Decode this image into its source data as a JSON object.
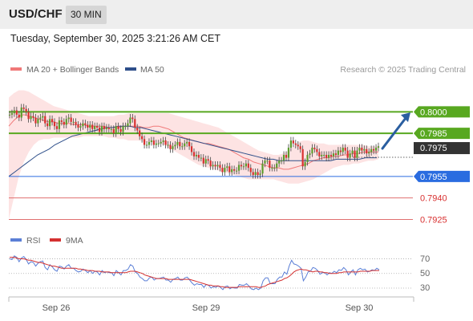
{
  "header": {
    "symbol": "USD/CHF",
    "interval": "30 MIN",
    "datetime": "Tuesday, September 30, 2025 3:21:26 AM CET"
  },
  "colors": {
    "bollinger": "#f07878",
    "bollinger_fill": "#fde3e3",
    "ma50": "#2e4f8a",
    "target_green": "#58a820",
    "current_dark": "#333333",
    "pivot_blue": "#2a6ce0",
    "support_red": "#e07070",
    "arrow": "#2a5ea0",
    "rsi": "#5b7fd6",
    "rsi_ma": "#d43030",
    "candle_up": "#5c9c2c",
    "candle_down": "#d83030"
  },
  "chart_data": [
    {
      "type": "candlestick",
      "legend": [
        {
          "label": "MA 20 + Bollinger Bands",
          "color": "#f07878"
        },
        {
          "label": "MA 50",
          "color": "#2e4f8a"
        }
      ],
      "credit": "Research © 2025 Trading Central",
      "ylim": [
        0.7918,
        0.8022
      ],
      "close": [
        0.7998,
        0.7999,
        0.8001,
        0.7998,
        0.7996,
        0.8003,
        0.8002,
        0.8,
        0.7995,
        0.7997,
        0.7996,
        0.7992,
        0.7995,
        0.7996,
        0.7997,
        0.7992,
        0.799,
        0.7995,
        0.7993,
        0.799,
        0.7988,
        0.7994,
        0.7993,
        0.7991,
        0.7995,
        0.7996,
        0.7993,
        0.7993,
        0.7991,
        0.7989,
        0.799,
        0.7992,
        0.7991,
        0.7989,
        0.7991,
        0.7988,
        0.799,
        0.7989,
        0.7986,
        0.799,
        0.7988,
        0.7989,
        0.7988,
        0.7988,
        0.7985,
        0.799,
        0.7988,
        0.7986,
        0.799,
        0.799,
        0.7992,
        0.7996,
        0.7995,
        0.7989,
        0.7987,
        0.7983,
        0.7981,
        0.7977,
        0.7977,
        0.7979,
        0.798,
        0.7977,
        0.7978,
        0.7978,
        0.7979,
        0.798,
        0.7977,
        0.7977,
        0.7974,
        0.7976,
        0.7977,
        0.7979,
        0.7976,
        0.7976,
        0.7978,
        0.7979,
        0.7976,
        0.7972,
        0.7969,
        0.797,
        0.7968,
        0.7968,
        0.7964,
        0.7967,
        0.7966,
        0.7962,
        0.7963,
        0.7962,
        0.7963,
        0.7961,
        0.7958,
        0.7961,
        0.7962,
        0.7958,
        0.796,
        0.7959,
        0.7959,
        0.7963,
        0.7962,
        0.7962,
        0.7964,
        0.7961,
        0.7958,
        0.7956,
        0.7958,
        0.7956,
        0.7957,
        0.7964,
        0.7966,
        0.7966,
        0.7961,
        0.7961,
        0.7961,
        0.7964,
        0.7966,
        0.7966,
        0.797,
        0.7968,
        0.7975,
        0.798,
        0.7978,
        0.7977,
        0.7976,
        0.7974,
        0.7962,
        0.7965,
        0.797,
        0.7971,
        0.7975,
        0.7974,
        0.7972,
        0.7969,
        0.797,
        0.797,
        0.7968,
        0.797,
        0.7969,
        0.7971,
        0.797,
        0.7973,
        0.7972,
        0.7975,
        0.7973,
        0.7968,
        0.7971,
        0.7973,
        0.7968,
        0.7973,
        0.7975,
        0.7973,
        0.7974,
        0.7971,
        0.7972,
        0.7974,
        0.7973,
        0.7975,
        0.7976
      ],
      "bb_mid": [
        0.799,
        0.7994,
        0.7997,
        0.7998,
        0.7997,
        0.7996,
        0.7995,
        0.7994,
        0.7993,
        0.7993,
        0.7992,
        0.7992,
        0.7992,
        0.7991,
        0.7991,
        0.7991,
        0.799,
        0.799,
        0.799,
        0.799,
        0.7989,
        0.7989,
        0.7989,
        0.799,
        0.799,
        0.799,
        0.799,
        0.7989,
        0.7989,
        0.799,
        0.799,
        0.7989,
        0.7988,
        0.7986,
        0.7984,
        0.7982,
        0.7981,
        0.798,
        0.7979,
        0.7978,
        0.7978,
        0.7977,
        0.7976,
        0.7975,
        0.7974,
        0.7972,
        0.797,
        0.7968,
        0.7967,
        0.7965,
        0.7964,
        0.7963,
        0.7962,
        0.7961,
        0.7961,
        0.796,
        0.796,
        0.7961,
        0.7962,
        0.7963,
        0.7964,
        0.7966,
        0.7967,
        0.7968,
        0.7968,
        0.7969,
        0.7969,
        0.797,
        0.797,
        0.7971,
        0.7971,
        0.7972,
        0.7972,
        0.7972,
        0.7972
      ],
      "bb_upper": [
        0.801,
        0.8013,
        0.8015,
        0.8015,
        0.8014,
        0.8012,
        0.801,
        0.8008,
        0.8006,
        0.8004,
        0.8003,
        0.8002,
        0.8001,
        0.8,
        0.7999,
        0.7998,
        0.7997,
        0.7997,
        0.7997,
        0.7997,
        0.7997,
        0.7997,
        0.7998,
        0.7998,
        0.7999,
        0.7999,
        0.7999,
        0.7999,
        0.7999,
        0.7999,
        0.7999,
        0.7999,
        0.7999,
        0.7998,
        0.7997,
        0.7996,
        0.7995,
        0.7994,
        0.7993,
        0.7992,
        0.7991,
        0.799,
        0.7989,
        0.7987,
        0.7985,
        0.7983,
        0.7981,
        0.7979,
        0.7977,
        0.7975,
        0.7973,
        0.7972,
        0.7971,
        0.797,
        0.797,
        0.7971,
        0.7973,
        0.7976,
        0.7979,
        0.798,
        0.798,
        0.7979,
        0.7978,
        0.7978,
        0.7977,
        0.7977,
        0.7977,
        0.7977,
        0.7977,
        0.7977,
        0.7977,
        0.7977,
        0.7976,
        0.7976,
        0.7976
      ],
      "bb_lower": [
        0.7925,
        0.794,
        0.7955,
        0.7965,
        0.7972,
        0.7977,
        0.798,
        0.7981,
        0.7981,
        0.7982,
        0.7982,
        0.7982,
        0.7982,
        0.7982,
        0.7982,
        0.7983,
        0.7983,
        0.7983,
        0.7983,
        0.7983,
        0.7982,
        0.7982,
        0.7981,
        0.7981,
        0.798,
        0.798,
        0.798,
        0.7979,
        0.7979,
        0.7979,
        0.7978,
        0.7977,
        0.7975,
        0.7973,
        0.7971,
        0.7969,
        0.7967,
        0.7965,
        0.7963,
        0.7962,
        0.7961,
        0.796,
        0.7959,
        0.7958,
        0.7957,
        0.7956,
        0.7955,
        0.7954,
        0.7953,
        0.7953,
        0.7953,
        0.7953,
        0.7953,
        0.7953,
        0.7952,
        0.7951,
        0.795,
        0.795,
        0.795,
        0.7951,
        0.7952,
        0.7953,
        0.7955,
        0.7957,
        0.7959,
        0.7961,
        0.7962,
        0.7963,
        0.7963,
        0.7964,
        0.7964,
        0.7965,
        0.7966,
        0.7966,
        0.7967
      ],
      "ma50": [
        0.7955,
        0.7958,
        0.7961,
        0.7964,
        0.7967,
        0.797,
        0.7972,
        0.7974,
        0.7977,
        0.7979,
        0.7981,
        0.7983,
        0.7984,
        0.7985,
        0.7986,
        0.7987,
        0.7988,
        0.7989,
        0.7989,
        0.799,
        0.799,
        0.799,
        0.7989,
        0.7989,
        0.7988,
        0.7987,
        0.7986,
        0.7985,
        0.7984,
        0.7983,
        0.7982,
        0.7981,
        0.798,
        0.7979,
        0.7978,
        0.7977,
        0.7976,
        0.7975,
        0.7974,
        0.7973,
        0.7972,
        0.7971,
        0.797,
        0.7969,
        0.7968,
        0.7967,
        0.7967,
        0.7966,
        0.7966,
        0.7966,
        0.7966,
        0.7966,
        0.7966,
        0.7966,
        0.7966,
        0.7966,
        0.7966,
        0.7967,
        0.7967,
        0.7967,
        0.7967,
        0.7967,
        0.7968,
        0.7968,
        0.7968
      ],
      "levels": [
        {
          "label": "0.8000",
          "value": 0.8,
          "style": "target",
          "color": "#58a820"
        },
        {
          "label": "0.7985",
          "value": 0.7985,
          "style": "target",
          "color": "#58a820"
        },
        {
          "label": "0.7975",
          "value": 0.7975,
          "style": "current",
          "color": "#333333"
        },
        {
          "label": "0.7955",
          "value": 0.7955,
          "style": "pivot",
          "color": "#2a6ce0"
        },
        {
          "label": "0.7940",
          "value": 0.794,
          "style": "support",
          "color": "#e07070"
        },
        {
          "label": "0.7925",
          "value": 0.7925,
          "style": "support",
          "color": "#e07070"
        }
      ],
      "forecast_arrow": {
        "from": 0.7975,
        "to": 0.7999
      }
    },
    {
      "type": "line",
      "legend": [
        {
          "label": "RSI",
          "color": "#5b7fd6"
        },
        {
          "label": "9MA",
          "color": "#d43030"
        }
      ],
      "ylim": [
        18,
        88
      ],
      "y_ticks": [
        "70",
        "50",
        "30"
      ],
      "x_ticks": [
        "Sep 26",
        "Sep 29",
        "Sep 30"
      ],
      "rsi": [
        70,
        69,
        74,
        72,
        66,
        71,
        73,
        69,
        63,
        66,
        65,
        60,
        64,
        66,
        67,
        58,
        55,
        62,
        59,
        55,
        53,
        60,
        59,
        56,
        60,
        62,
        57,
        57,
        54,
        52,
        53,
        56,
        54,
        51,
        54,
        50,
        53,
        52,
        48,
        54,
        51,
        52,
        51,
        51,
        47,
        54,
        51,
        48,
        54,
        54,
        56,
        62,
        60,
        52,
        50,
        45,
        43,
        40,
        40,
        44,
        45,
        41,
        43,
        43,
        44,
        45,
        41,
        41,
        38,
        42,
        43,
        45,
        41,
        41,
        44,
        45,
        41,
        37,
        34,
        36,
        35,
        35,
        31,
        35,
        34,
        30,
        32,
        31,
        33,
        31,
        28,
        32,
        33,
        29,
        31,
        30,
        30,
        35,
        34,
        34,
        36,
        33,
        29,
        28,
        30,
        28,
        30,
        40,
        44,
        44,
        36,
        36,
        36,
        42,
        45,
        45,
        52,
        49,
        60,
        68,
        63,
        62,
        60,
        57,
        40,
        45,
        52,
        53,
        58,
        57,
        54,
        49,
        51,
        51,
        48,
        51,
        50,
        53,
        51,
        55,
        54,
        58,
        55,
        48,
        52,
        55,
        48,
        55,
        57,
        55,
        56,
        52,
        53,
        55,
        54,
        57,
        55
      ],
      "rsi_ma": [
        72,
        72,
        72,
        71,
        70,
        70,
        70,
        69,
        68,
        68,
        67,
        66,
        65,
        65,
        64,
        63,
        62,
        61,
        60,
        60,
        59,
        58,
        57,
        57,
        57,
        57,
        57,
        57,
        57,
        56,
        56,
        55,
        55,
        54,
        54,
        54,
        53,
        53,
        53,
        52,
        52,
        52,
        52,
        51,
        51,
        51,
        51,
        51,
        51,
        51,
        52,
        53,
        53,
        53,
        52,
        51,
        50,
        48,
        47,
        46,
        45,
        44,
        43,
        43,
        43,
        43,
        43,
        42,
        42,
        42,
        42,
        42,
        42,
        42,
        42,
        42,
        42,
        41,
        40,
        39,
        38,
        37,
        36,
        35,
        34,
        34,
        33,
        33,
        33,
        32,
        32,
        31,
        31,
        31,
        31,
        31,
        31,
        32,
        32,
        32,
        32,
        32,
        32,
        32,
        32,
        31,
        31,
        32,
        33,
        35,
        36,
        37,
        38,
        39,
        40,
        41,
        43,
        44,
        46,
        49,
        52,
        54,
        55,
        56,
        55,
        55,
        54,
        53,
        52,
        53,
        53,
        52,
        52,
        51,
        51,
        50,
        50,
        50,
        50,
        51,
        51,
        52,
        52,
        52,
        52,
        52,
        52,
        52,
        53,
        53,
        53,
        53,
        53,
        54,
        54,
        54,
        54
      ]
    }
  ]
}
